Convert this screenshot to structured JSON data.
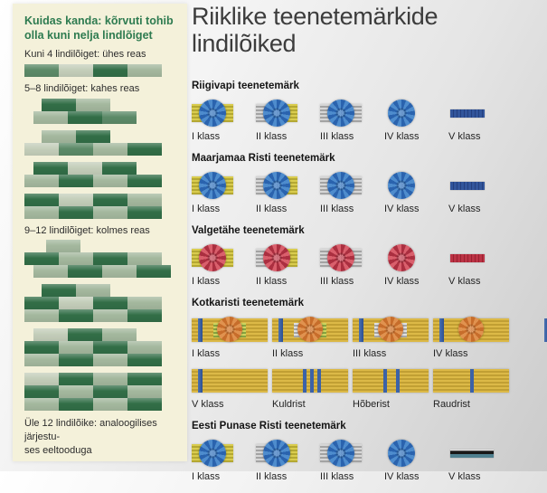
{
  "colors": {
    "panel_background": "#f4f1da",
    "title_green": "#2e7b50",
    "block_dark": "#326e47",
    "block_medium": "#5c8a68",
    "block_light": "#a4b89e",
    "block_pale": "#c4ceba",
    "gold": "#cdc044",
    "silver": "#bdbdbd",
    "navy_blue": "#2b4e8e",
    "crimson": "#b03243",
    "rosette_blue": "#3d7ec0",
    "rosette_red": "#c84e5c",
    "rosette_orange": "#d8813f",
    "eagle_gold": "#d0ac3d",
    "stripe_blue": "#3b62a8",
    "red_cross_v_teal": "#50808f"
  },
  "left_panel": {
    "title": "Kuidas kanda: kõrvuti tohib olla kuni nelja lindlõiget",
    "sections": [
      {
        "label": "Kuni 4 lindilõiget: ühes reas",
        "examples": [
          [
            {
              "off": 0,
              "b": [
                "m",
                "p",
                "d",
                "l"
              ]
            }
          ]
        ]
      },
      {
        "label": "5–8 lindilõiget: kahes reas",
        "examples": [
          [
            {
              "off": 1,
              "b": [
                "d",
                "l"
              ]
            },
            {
              "off": 0.5,
              "b": [
                "l",
                "d",
                "m"
              ]
            }
          ],
          [
            {
              "off": 1,
              "b": [
                "l",
                "d"
              ]
            },
            {
              "off": 0,
              "b": [
                "p",
                "m",
                "l",
                "d"
              ]
            }
          ],
          [
            {
              "off": 0.5,
              "b": [
                "d",
                "p",
                "d"
              ]
            },
            {
              "off": 0,
              "b": [
                "l",
                "d",
                "l",
                "d"
              ]
            }
          ],
          [
            {
              "off": 0,
              "b": [
                "d",
                "p",
                "d",
                "l"
              ]
            },
            {
              "off": 0,
              "b": [
                "l",
                "d",
                "l",
                "d"
              ]
            }
          ]
        ]
      },
      {
        "label": "9–12 lindilõiget: kolmes reas",
        "examples": [
          [
            {
              "off": 1.25,
              "b": [
                "l"
              ]
            },
            {
              "off": 0,
              "b": [
                "d",
                "l",
                "d",
                "l"
              ]
            },
            {
              "off": 0.5,
              "b": [
                "l",
                "d",
                "l",
                "d"
              ]
            }
          ],
          [
            {
              "off": 1,
              "b": [
                "d",
                "l"
              ]
            },
            {
              "off": 0,
              "b": [
                "d",
                "p",
                "d",
                "l"
              ]
            },
            {
              "off": 0,
              "b": [
                "l",
                "d",
                "l",
                "d"
              ]
            }
          ],
          [
            {
              "off": 0.5,
              "b": [
                "p",
                "d",
                "l"
              ]
            },
            {
              "off": 0,
              "b": [
                "d",
                "l",
                "d",
                "l"
              ]
            },
            {
              "off": 0,
              "b": [
                "l",
                "d",
                "l",
                "d"
              ]
            }
          ],
          [
            {
              "off": 0,
              "b": [
                "p",
                "d",
                "l",
                "d"
              ]
            },
            {
              "off": 0,
              "b": [
                "d",
                "l",
                "d",
                "l"
              ]
            },
            {
              "off": 0,
              "b": [
                "l",
                "d",
                "l",
                "d"
              ]
            }
          ]
        ]
      }
    ],
    "footer_lines": [
      "Üle 12 lindilõike: analoogilises järjestu-",
      "ses eeltooduga"
    ]
  },
  "right": {
    "title": "Riiklike teenetemärkide lindilõiked",
    "orders": [
      {
        "name": "Riigivapi teenetemärk",
        "rows": [
          [
            {
              "label": "I klass",
              "kind": "order-bar",
              "bar": "gold",
              "rosette": "blue"
            },
            {
              "label": "II klass",
              "kind": "order-bar",
              "bar": "half",
              "rosette": "blue"
            },
            {
              "label": "III klass",
              "kind": "order-bar",
              "bar": "silver",
              "rosette": "blue"
            },
            {
              "label": "IV klass",
              "kind": "rosette",
              "rosette": "blue"
            },
            {
              "label": "V klass",
              "kind": "vbar",
              "style": "navy"
            }
          ]
        ]
      },
      {
        "name": "Maarjamaa Risti teenetemärk",
        "rows": [
          [
            {
              "label": "I klass",
              "kind": "order-bar",
              "bar": "gold",
              "rosette": "blue"
            },
            {
              "label": "II klass",
              "kind": "order-bar",
              "bar": "half",
              "rosette": "blue"
            },
            {
              "label": "III klass",
              "kind": "order-bar",
              "bar": "silver",
              "rosette": "blue"
            },
            {
              "label": "IV klass",
              "kind": "rosette",
              "rosette": "blue"
            },
            {
              "label": "V klass",
              "kind": "vbar",
              "style": "navy"
            }
          ]
        ]
      },
      {
        "name": "Valgetähe teenetemärk",
        "rows": [
          [
            {
              "label": "I klass",
              "kind": "order-bar",
              "bar": "gold",
              "rosette": "red"
            },
            {
              "label": "II klass",
              "kind": "order-bar",
              "bar": "half",
              "rosette": "red"
            },
            {
              "label": "III klass",
              "kind": "order-bar",
              "bar": "silver",
              "rosette": "red"
            },
            {
              "label": "IV klass",
              "kind": "rosette",
              "rosette": "red"
            },
            {
              "label": "V klass",
              "kind": "vbar",
              "style": "crimson"
            }
          ]
        ]
      },
      {
        "name": "Kotkaristi teenetemärk",
        "wide": true,
        "rows": [
          [
            {
              "label": "I klass",
              "kind": "eagle",
              "center": "green",
              "rosette": true
            },
            {
              "label": "II klass",
              "kind": "eagle",
              "center": "silver-green",
              "rosette": true
            },
            {
              "label": "III klass",
              "kind": "eagle",
              "center": "silver",
              "rosette": true
            },
            {
              "label": "IV klass",
              "kind": "eagle",
              "rosette": true
            }
          ],
          [
            {
              "label": "V klass",
              "kind": "eagle"
            },
            {
              "label": "Kuldrist",
              "kind": "eagle",
              "edges": false,
              "stripes": [
                34,
                42,
                50
              ]
            },
            {
              "label": "Hõberist",
              "kind": "eagle",
              "edges": false,
              "stripes": [
                34,
                48
              ]
            },
            {
              "label": "Raudrist",
              "kind": "eagle",
              "edges": false,
              "stripes": [
                41
              ]
            }
          ]
        ]
      },
      {
        "name": "Eesti Punase Risti teenetemärk",
        "rows": [
          [
            {
              "label": "I klass",
              "kind": "order-bar",
              "bar": "gold",
              "rosette": "blue"
            },
            {
              "label": "II klass",
              "kind": "order-bar",
              "bar": "half",
              "rosette": "blue"
            },
            {
              "label": "III klass",
              "kind": "order-bar",
              "bar": "silver",
              "rosette": "blue"
            },
            {
              "label": "IV klass",
              "kind": "rosette",
              "rosette": "blue"
            },
            {
              "label": "V klass",
              "kind": "vbar",
              "style": "rc"
            }
          ]
        ]
      }
    ]
  }
}
